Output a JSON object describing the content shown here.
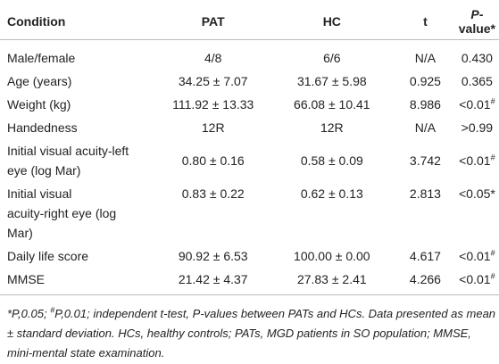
{
  "table": {
    "header": [
      "Condition",
      "PAT",
      "HC",
      "t",
      {
        "italic": "P",
        "rest": "-value*"
      }
    ],
    "rows": [
      [
        [
          "Male/female"
        ],
        "4/8",
        "6/6",
        "N/A",
        {
          "text": "0.430"
        }
      ],
      [
        [
          "Age (years)"
        ],
        "34.25 ± 7.07",
        "31.67 ± 5.98",
        "0.925",
        {
          "text": "0.365"
        }
      ],
      [
        [
          "Weight (kg)"
        ],
        "111.92 ± 13.33",
        "66.08 ± 10.41",
        "8.986",
        {
          "text": "<0.01",
          "sup": "#"
        }
      ],
      [
        [
          "Handedness"
        ],
        "12R",
        "12R",
        "N/A",
        {
          "text": ">0.99"
        }
      ],
      [
        [
          "Initial visual acuity-left",
          "eye (log Mar)"
        ],
        "0.80 ± 0.16",
        "0.58 ± 0.09",
        "3.742",
        {
          "text": "<0.01",
          "sup": "#"
        }
      ],
      [
        [
          "Initial visual",
          "acuity-right eye (log",
          "Mar)"
        ],
        "0.83 ± 0.22",
        "0.62 ± 0.13",
        "2.813",
        {
          "text": "<0.05*"
        }
      ],
      [
        [
          "Daily life score"
        ],
        "90.92 ± 6.53",
        "100.00 ± 0.00",
        "4.617",
        {
          "text": "<0.01",
          "sup": "#"
        }
      ],
      [
        [
          "MMSE"
        ],
        "21.42 ± 4.37",
        "27.83 ± 2.41",
        "4.266",
        {
          "text": "<0.01",
          "sup": "#"
        }
      ]
    ]
  },
  "footnote": [
    {
      "text": "*P,0.05; "
    },
    {
      "sup": "#"
    },
    {
      "text": "P,0.01; independent t-test, P-values between PATs and HCs. Data presented as mean ± standard deviation. HCs, healthy controls; PATs, MGD patients in SO population; MMSE, mini-mental state examination."
    }
  ]
}
